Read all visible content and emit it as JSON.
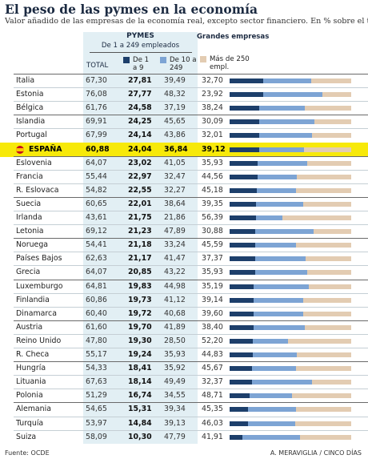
{
  "title": "El peso de las pymes en la economía",
  "subtitle": "Valor añadido de las empresas de la economía real, excepto sector financiero. En % sobre el total",
  "header": {
    "pymes": "PYMES",
    "pymes_sub": "De 1 a 249 empleados",
    "total": "TOTAL",
    "grandes": "Grandes empresas"
  },
  "legend": {
    "small": "De 1 a 9",
    "mid": "De 10 a 249",
    "large": "Más de 250 empl."
  },
  "colors": {
    "small": "#1d3f6b",
    "mid": "#7da4d4",
    "large": "#e3ccb2",
    "highlight": "#f7e90a",
    "pymes_bg": "#e2eff4"
  },
  "footer": {
    "source": "Fuente: OCDE",
    "credit": "A. MERAVIGLIA / CINCO DÍAS"
  },
  "chart_data": {
    "type": "bar",
    "orientation": "horizontal",
    "stacked": true,
    "xlim": [
      0,
      100
    ],
    "series_names": [
      "De 1 a 9",
      "De 10 a 249",
      "Más de 250 empl."
    ],
    "highlight": "ESPAÑA",
    "rows": [
      {
        "country": "Italia",
        "total": "67,30",
        "small": "27,81",
        "mid": "39,49",
        "large": "32,70",
        "v": [
          27.81,
          39.49,
          32.7
        ]
      },
      {
        "country": "Estonia",
        "total": "76,08",
        "small": "27,77",
        "mid": "48,32",
        "large": "23,92",
        "v": [
          27.77,
          48.32,
          23.92
        ]
      },
      {
        "country": "Bélgica",
        "total": "61,76",
        "small": "24,58",
        "mid": "37,19",
        "large": "38,24",
        "v": [
          24.58,
          37.19,
          38.24
        ]
      },
      {
        "country": "Islandia",
        "total": "69,91",
        "small": "24,25",
        "mid": "45,65",
        "large": "30,09",
        "v": [
          24.25,
          45.65,
          30.09
        ]
      },
      {
        "country": "Portugal",
        "total": "67,99",
        "small": "24,14",
        "mid": "43,86",
        "large": "32,01",
        "v": [
          24.14,
          43.86,
          32.01
        ]
      },
      {
        "country": "ESPAÑA",
        "total": "60,88",
        "small": "24,04",
        "mid": "36,84",
        "large": "39,12",
        "v": [
          24.04,
          36.84,
          39.12
        ]
      },
      {
        "country": "Eslovenia",
        "total": "64,07",
        "small": "23,02",
        "mid": "41,05",
        "large": "35,93",
        "v": [
          23.02,
          41.05,
          35.93
        ]
      },
      {
        "country": "Francia",
        "total": "55,44",
        "small": "22,97",
        "mid": "32,47",
        "large": "44,56",
        "v": [
          22.97,
          32.47,
          44.56
        ]
      },
      {
        "country": "R. Eslovaca",
        "total": "54,82",
        "small": "22,55",
        "mid": "32,27",
        "large": "45,18",
        "v": [
          22.55,
          32.27,
          45.18
        ]
      },
      {
        "country": "Suecia",
        "total": "60,65",
        "small": "22,01",
        "mid": "38,64",
        "large": "39,35",
        "v": [
          22.01,
          38.64,
          39.35
        ]
      },
      {
        "country": "Irlanda",
        "total": "43,61",
        "small": "21,75",
        "mid": "21,86",
        "large": "56,39",
        "v": [
          21.75,
          21.86,
          56.39
        ]
      },
      {
        "country": "Letonia",
        "total": "69,12",
        "small": "21,23",
        "mid": "47,89",
        "large": "30,88",
        "v": [
          21.23,
          47.89,
          30.88
        ]
      },
      {
        "country": "Noruega",
        "total": "54,41",
        "small": "21,18",
        "mid": "33,24",
        "large": "45,59",
        "v": [
          21.18,
          33.24,
          45.59
        ]
      },
      {
        "country": "Países Bajos",
        "total": "62,63",
        "small": "21,17",
        "mid": "41,47",
        "large": "37,37",
        "v": [
          21.17,
          41.47,
          37.37
        ]
      },
      {
        "country": "Grecia",
        "total": "64,07",
        "small": "20,85",
        "mid": "43,22",
        "large": "35,93",
        "v": [
          20.85,
          43.22,
          35.93
        ]
      },
      {
        "country": "Luxemburgo",
        "total": "64,81",
        "small": "19,83",
        "mid": "44,98",
        "large": "35,19",
        "v": [
          19.83,
          44.98,
          35.19
        ]
      },
      {
        "country": "Finlandia",
        "total": "60,86",
        "small": "19,73",
        "mid": "41,12",
        "large": "39,14",
        "v": [
          19.73,
          41.12,
          39.14
        ]
      },
      {
        "country": "Dinamarca",
        "total": "60,40",
        "small": "19,72",
        "mid": "40,68",
        "large": "39,60",
        "v": [
          19.72,
          40.68,
          39.6
        ]
      },
      {
        "country": "Austria",
        "total": "61,60",
        "small": "19,70",
        "mid": "41,89",
        "large": "38,40",
        "v": [
          19.7,
          41.89,
          38.4
        ]
      },
      {
        "country": "Reino Unido",
        "total": "47,80",
        "small": "19,30",
        "mid": "28,50",
        "large": "52,20",
        "v": [
          19.3,
          28.5,
          52.2
        ]
      },
      {
        "country": "R. Checa",
        "total": "55,17",
        "small": "19,24",
        "mid": "35,93",
        "large": "44,83",
        "v": [
          19.24,
          35.93,
          44.83
        ]
      },
      {
        "country": "Hungría",
        "total": "54,33",
        "small": "18,41",
        "mid": "35,92",
        "large": "45,67",
        "v": [
          18.41,
          35.92,
          45.67
        ]
      },
      {
        "country": "Lituania",
        "total": "67,63",
        "small": "18,14",
        "mid": "49,49",
        "large": "32,37",
        "v": [
          18.14,
          49.49,
          32.37
        ]
      },
      {
        "country": "Polonia",
        "total": "51,29",
        "small": "16,74",
        "mid": "34,55",
        "large": "48,71",
        "v": [
          16.74,
          34.55,
          48.71
        ]
      },
      {
        "country": "Alemania",
        "total": "54,65",
        "small": "15,31",
        "mid": "39,34",
        "large": "45,35",
        "v": [
          15.31,
          39.34,
          45.35
        ]
      },
      {
        "country": "Turquía",
        "total": "53,97",
        "small": "14,84",
        "mid": "39,13",
        "large": "46,03",
        "v": [
          14.84,
          39.13,
          46.03
        ]
      },
      {
        "country": "Suiza",
        "total": "58,09",
        "small": "10,30",
        "mid": "47,79",
        "large": "41,91",
        "v": [
          10.3,
          47.79,
          41.91
        ]
      }
    ]
  }
}
